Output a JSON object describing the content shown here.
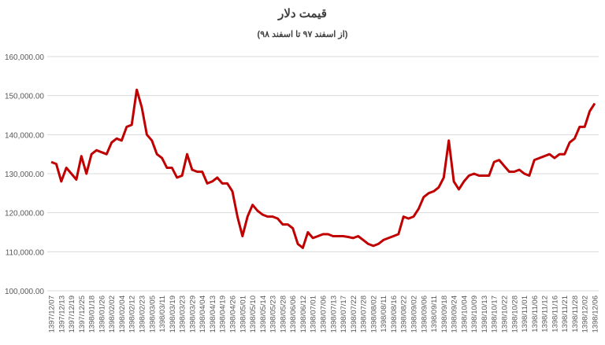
{
  "chart_data": {
    "type": "line",
    "title": "قیمت دلار",
    "subtitle": "(از اسفند ۹۷ تا اسفند ۹۸)",
    "categories": [
      "1397/12/07",
      null,
      "1397/12/13",
      null,
      "1397/12/19",
      null,
      "1397/12/25",
      null,
      "1398/01/18",
      null,
      "1398/01/26",
      null,
      "1398/02/02",
      null,
      "1398/02/04",
      null,
      "1398/02/12",
      null,
      "1398/02/23",
      null,
      "1398/03/05",
      null,
      "1398/03/11",
      null,
      "1398/03/19",
      null,
      "1398/03/23",
      null,
      "1398/03/29",
      null,
      "1398/04/04",
      null,
      "1398/04/13",
      null,
      "1398/04/19",
      null,
      "1398/04/26",
      null,
      "1398/05/01",
      null,
      "1398/05/10",
      null,
      "1398/05/14",
      null,
      "1398/05/23",
      null,
      "1398/05/28",
      null,
      "1398/06/06",
      null,
      "1398/06/12",
      null,
      "1398/07/01",
      null,
      "1398/07/06",
      null,
      "1398/07/13",
      null,
      "1398/07/17",
      null,
      "1398/07/22",
      null,
      "1398/07/28",
      null,
      "1398/08/02",
      null,
      "1398/08/11",
      null,
      "1398/08/16",
      null,
      "1398/08/22",
      null,
      "1398/09/02",
      null,
      "1398/09/06",
      null,
      "1398/09/11",
      null,
      "1398/09/18",
      null,
      "1398/09/24",
      null,
      "1398/10/04",
      null,
      "1398/10/09",
      null,
      "1398/10/13",
      null,
      "1398/10/17",
      null,
      "1398/10/22",
      null,
      "1398/10/28",
      null,
      "1398/11/01",
      null,
      "1398/11/06",
      null,
      "1398/11/12",
      null,
      "1398/11/16",
      null,
      "1398/11/21",
      null,
      "1398/11/28",
      null,
      "1398/12/02",
      null,
      "1398/12/06"
    ],
    "values": [
      133000,
      132500,
      128000,
      131500,
      130000,
      128500,
      134500,
      130000,
      135000,
      136000,
      135500,
      135000,
      138000,
      139000,
      138500,
      142000,
      142500,
      151500,
      147000,
      140000,
      138500,
      135000,
      134000,
      131500,
      131500,
      129000,
      129500,
      135000,
      131000,
      130500,
      130500,
      127500,
      128000,
      129000,
      127500,
      127500,
      125500,
      119000,
      114000,
      119000,
      122000,
      120500,
      119500,
      119000,
      119000,
      118500,
      117000,
      117000,
      116000,
      112000,
      111000,
      115000,
      113500,
      114000,
      114500,
      114500,
      114000,
      114000,
      114000,
      113800,
      113500,
      114000,
      113000,
      112000,
      111500,
      112000,
      113000,
      113500,
      114000,
      114500,
      119000,
      118500,
      119000,
      121000,
      124000,
      125000,
      125500,
      126500,
      129000,
      138500,
      128000,
      126000,
      128000,
      129500,
      130000,
      129500,
      129500,
      129500,
      133000,
      133500,
      132000,
      130500,
      130500,
      131000,
      130000,
      129500,
      133500,
      134000,
      134500,
      135000,
      134000,
      135000,
      135000,
      138000,
      139000,
      142000,
      142000,
      146000,
      148000
    ],
    "color": "#c00000",
    "ylim": [
      100000,
      160000
    ],
    "yticks": [
      {
        "value": 100000,
        "label": "100,000.00"
      },
      {
        "value": 110000,
        "label": "110,000.00"
      },
      {
        "value": 120000,
        "label": "120,000.00"
      },
      {
        "value": 130000,
        "label": "130,000.00"
      },
      {
        "value": 140000,
        "label": "140,000.00"
      },
      {
        "value": 150000,
        "label": "150,000.00"
      },
      {
        "value": 160000,
        "label": "160,000.00"
      }
    ],
    "grid": true
  }
}
